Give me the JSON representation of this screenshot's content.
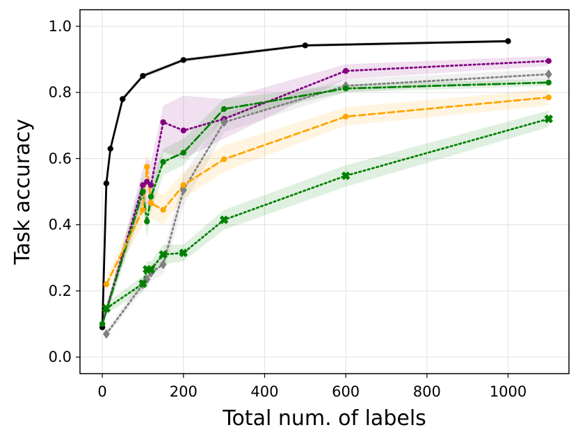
{
  "chart_data": {
    "type": "line",
    "title": "",
    "xlabel": "Total num. of labels",
    "ylabel": "Task accuracy",
    "xlim": [
      -55,
      1150
    ],
    "ylim": [
      -0.05,
      1.05
    ],
    "grid": true,
    "legend": "none",
    "x_ticks": [
      0,
      200,
      400,
      600,
      800,
      1000
    ],
    "x_tick_labels": [
      "0",
      "200",
      "400",
      "600",
      "800",
      "1000"
    ],
    "y_ticks": [
      0.0,
      0.2,
      0.4,
      0.6,
      0.8,
      1.0
    ],
    "y_tick_labels": [
      "0.0",
      "0.2",
      "0.4",
      "0.6",
      "0.8",
      "1.0"
    ],
    "series": [
      {
        "name": "black-solid",
        "color": "#000000",
        "linestyle": "solid",
        "marker": "circle",
        "x": [
          0,
          10,
          20,
          50,
          100,
          200,
          500,
          1000
        ],
        "y": [
          0.09,
          0.525,
          0.63,
          0.78,
          0.85,
          0.898,
          0.942,
          0.955
        ],
        "band_low": [
          0.085,
          0.515,
          0.62,
          0.772,
          0.843,
          0.892,
          0.937,
          0.95
        ],
        "band_high": [
          0.095,
          0.535,
          0.64,
          0.788,
          0.857,
          0.904,
          0.947,
          0.96
        ]
      },
      {
        "name": "purple-dotted",
        "color": "#800080",
        "linestyle": "dotted",
        "marker": "circle",
        "x": [
          0,
          100,
          110,
          120,
          150,
          200,
          300,
          600,
          1100
        ],
        "y": [
          0.1,
          0.52,
          0.53,
          0.52,
          0.71,
          0.685,
          0.72,
          0.865,
          0.895
        ],
        "band_low": [
          0.09,
          0.47,
          0.46,
          0.45,
          0.62,
          0.6,
          0.66,
          0.84,
          0.88
        ],
        "band_high": [
          0.11,
          0.57,
          0.6,
          0.59,
          0.76,
          0.79,
          0.78,
          0.885,
          0.91
        ]
      },
      {
        "name": "gray-dotted",
        "color": "#808080",
        "linestyle": "dotted",
        "marker": "diamond",
        "x": [
          10,
          100,
          110,
          120,
          150,
          200,
          300,
          600,
          1100
        ],
        "y": [
          0.07,
          0.22,
          0.235,
          0.255,
          0.28,
          0.505,
          0.71,
          0.82,
          0.855
        ],
        "band_low": [
          0.06,
          0.2,
          0.21,
          0.23,
          0.25,
          0.46,
          0.68,
          0.8,
          0.84
        ],
        "band_high": [
          0.08,
          0.24,
          0.26,
          0.28,
          0.31,
          0.55,
          0.74,
          0.84,
          0.87
        ]
      },
      {
        "name": "green-dashdot",
        "color": "#008000",
        "linestyle": "dashdot",
        "marker": "circle",
        "x": [
          0,
          100,
          110,
          120,
          150,
          200,
          300,
          600,
          1100
        ],
        "y": [
          0.1,
          0.5,
          0.41,
          0.485,
          0.59,
          0.618,
          0.75,
          0.812,
          0.83
        ],
        "band_low": [
          0.09,
          0.45,
          0.36,
          0.44,
          0.55,
          0.58,
          0.72,
          0.8,
          0.82
        ],
        "band_high": [
          0.11,
          0.55,
          0.46,
          0.53,
          0.63,
          0.66,
          0.78,
          0.825,
          0.84
        ]
      },
      {
        "name": "orange-dashed",
        "color": "#FFA500",
        "linestyle": "dashed",
        "marker": "circle",
        "x": [
          10,
          100,
          110,
          120,
          150,
          200,
          300,
          600,
          1100
        ],
        "y": [
          0.22,
          0.445,
          0.575,
          0.465,
          0.445,
          0.52,
          0.598,
          0.727,
          0.785
        ],
        "band_low": [
          0.2,
          0.4,
          0.52,
          0.42,
          0.4,
          0.48,
          0.56,
          0.7,
          0.76
        ],
        "band_high": [
          0.24,
          0.49,
          0.63,
          0.51,
          0.49,
          0.56,
          0.64,
          0.755,
          0.81
        ]
      },
      {
        "name": "green-dotted-x",
        "color": "#008000",
        "linestyle": "dotted",
        "marker": "x",
        "x": [
          10,
          100,
          110,
          120,
          150,
          200,
          300,
          600,
          1100
        ],
        "y": [
          0.147,
          0.222,
          0.265,
          0.265,
          0.31,
          0.315,
          0.415,
          0.548,
          0.72
        ],
        "band_low": [
          0.13,
          0.2,
          0.24,
          0.24,
          0.28,
          0.29,
          0.385,
          0.515,
          0.695
        ],
        "band_high": [
          0.165,
          0.245,
          0.29,
          0.29,
          0.34,
          0.34,
          0.445,
          0.58,
          0.745
        ]
      }
    ]
  }
}
